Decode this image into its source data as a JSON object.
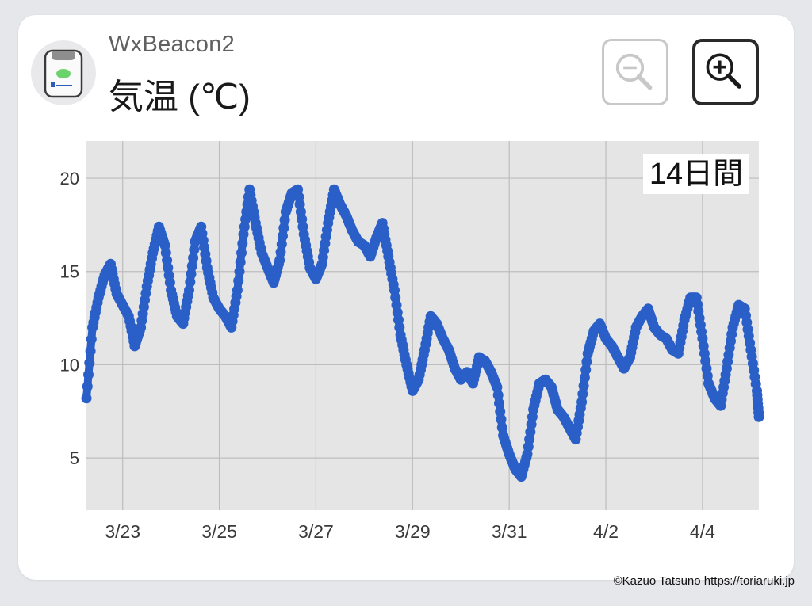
{
  "header": {
    "device_name": "WxBeacon2",
    "metric_title": "気温 (℃)",
    "device_icon": "sensor-device-icon",
    "zoom_out_icon": "zoom-out-icon",
    "zoom_in_icon": "zoom-in-icon"
  },
  "chart": {
    "period_label": "14日間"
  },
  "footer": {
    "copyright": "©Kazuo Tatsuno https://toriaruki.jp"
  },
  "colors": {
    "series": "#2a5fc8",
    "plot_bg": "#e5e5e5",
    "grid": "#bdbdbd",
    "zoom_out_disabled": "#c8c8c8",
    "zoom_in_active": "#2a2a2a"
  },
  "chart_data": {
    "type": "scatter",
    "title": "",
    "xlabel": "",
    "ylabel": "",
    "x_ticks": [
      "3/23",
      "3/25",
      "3/27",
      "3/29",
      "3/31",
      "4/2",
      "4/4"
    ],
    "y_ticks": [
      5,
      10,
      15,
      20
    ],
    "xlim": [
      "3/22 06:00",
      "4/5 04:00"
    ],
    "ylim": [
      2.2,
      22
    ],
    "grid": true,
    "series": [
      {
        "x": [
          "3/22 06:00",
          "3/22 09:00",
          "3/22 12:00",
          "3/22 15:00",
          "3/22 18:00",
          "3/22 21:00",
          "3/23 00:00",
          "3/23 03:00",
          "3/23 06:00",
          "3/23 09:00",
          "3/23 12:00",
          "3/23 15:00",
          "3/23 18:00",
          "3/23 21:00",
          "3/24 00:00",
          "3/24 03:00",
          "3/24 06:00",
          "3/24 09:00",
          "3/24 12:00",
          "3/24 15:00",
          "3/24 18:00",
          "3/24 21:00",
          "3/25 00:00",
          "3/25 03:00",
          "3/25 06:00",
          "3/25 09:00",
          "3/25 12:00",
          "3/25 15:00",
          "3/25 18:00",
          "3/25 21:00",
          "3/26 00:00",
          "3/26 03:00",
          "3/26 06:00",
          "3/26 09:00",
          "3/26 12:00",
          "3/26 15:00",
          "3/26 18:00",
          "3/26 21:00",
          "3/27 00:00",
          "3/27 03:00",
          "3/27 06:00",
          "3/27 09:00",
          "3/27 12:00",
          "3/27 15:00",
          "3/27 18:00",
          "3/27 21:00",
          "3/28 00:00",
          "3/28 03:00",
          "3/28 06:00",
          "3/28 09:00",
          "3/28 12:00",
          "3/28 15:00",
          "3/28 18:00",
          "3/28 21:00",
          "3/29 00:00",
          "3/29 03:00",
          "3/29 06:00",
          "3/29 09:00",
          "3/29 12:00",
          "3/29 15:00",
          "3/29 18:00",
          "3/29 21:00",
          "3/30 00:00",
          "3/30 03:00",
          "3/30 06:00",
          "3/30 09:00",
          "3/30 12:00",
          "3/30 15:00",
          "3/30 18:00",
          "3/30 21:00",
          "3/31 00:00",
          "3/31 03:00",
          "3/31 06:00",
          "3/31 09:00",
          "3/31 12:00",
          "3/31 15:00",
          "3/31 18:00",
          "3/31 21:00",
          "4/1 00:00",
          "4/1 03:00",
          "4/1 06:00",
          "4/1 09:00",
          "4/1 12:00",
          "4/1 15:00",
          "4/1 18:00",
          "4/1 21:00",
          "4/2 00:00",
          "4/2 03:00",
          "4/2 06:00",
          "4/2 09:00",
          "4/2 12:00",
          "4/2 15:00",
          "4/2 18:00",
          "4/2 21:00",
          "4/3 00:00",
          "4/3 03:00",
          "4/3 06:00",
          "4/3 09:00",
          "4/3 12:00",
          "4/3 15:00",
          "4/3 18:00",
          "4/3 21:00",
          "4/4 00:00",
          "4/4 03:00",
          "4/4 06:00",
          "4/4 09:00",
          "4/4 12:00",
          "4/4 15:00",
          "4/4 18:00",
          "4/4 21:00",
          "4/5 00:00",
          "4/5 03:00",
          "4/5 04:00"
        ],
        "y": [
          8.2,
          12.0,
          13.6,
          14.8,
          15.4,
          13.8,
          13.2,
          12.6,
          11.0,
          12.0,
          14.2,
          16.0,
          17.4,
          16.4,
          14.0,
          12.6,
          12.2,
          14.0,
          16.6,
          17.4,
          15.2,
          13.6,
          13.0,
          12.6,
          12.0,
          14.0,
          17.0,
          19.4,
          17.6,
          16.0,
          15.2,
          14.4,
          15.6,
          18.2,
          19.2,
          19.4,
          17.0,
          15.2,
          14.6,
          15.4,
          17.6,
          19.4,
          18.6,
          18.0,
          17.2,
          16.6,
          16.4,
          15.8,
          16.8,
          17.6,
          15.8,
          14.0,
          11.6,
          10.0,
          8.6,
          9.2,
          10.8,
          12.6,
          12.2,
          11.4,
          10.8,
          9.8,
          9.2,
          9.6,
          9.0,
          10.4,
          10.2,
          9.6,
          8.8,
          6.2,
          5.2,
          4.4,
          4.0,
          5.2,
          7.6,
          9.0,
          9.2,
          8.8,
          7.6,
          7.2,
          6.6,
          6.0,
          8.0,
          10.6,
          11.8,
          12.2,
          11.4,
          11.0,
          10.4,
          9.8,
          10.4,
          12.0,
          12.6,
          13.0,
          12.0,
          11.6,
          11.4,
          10.8,
          10.6,
          12.4,
          13.6,
          13.6,
          11.4,
          9.0,
          8.2,
          7.8,
          9.8,
          12.0,
          13.2,
          13.0,
          10.8,
          8.6,
          7.2
        ]
      }
    ]
  }
}
